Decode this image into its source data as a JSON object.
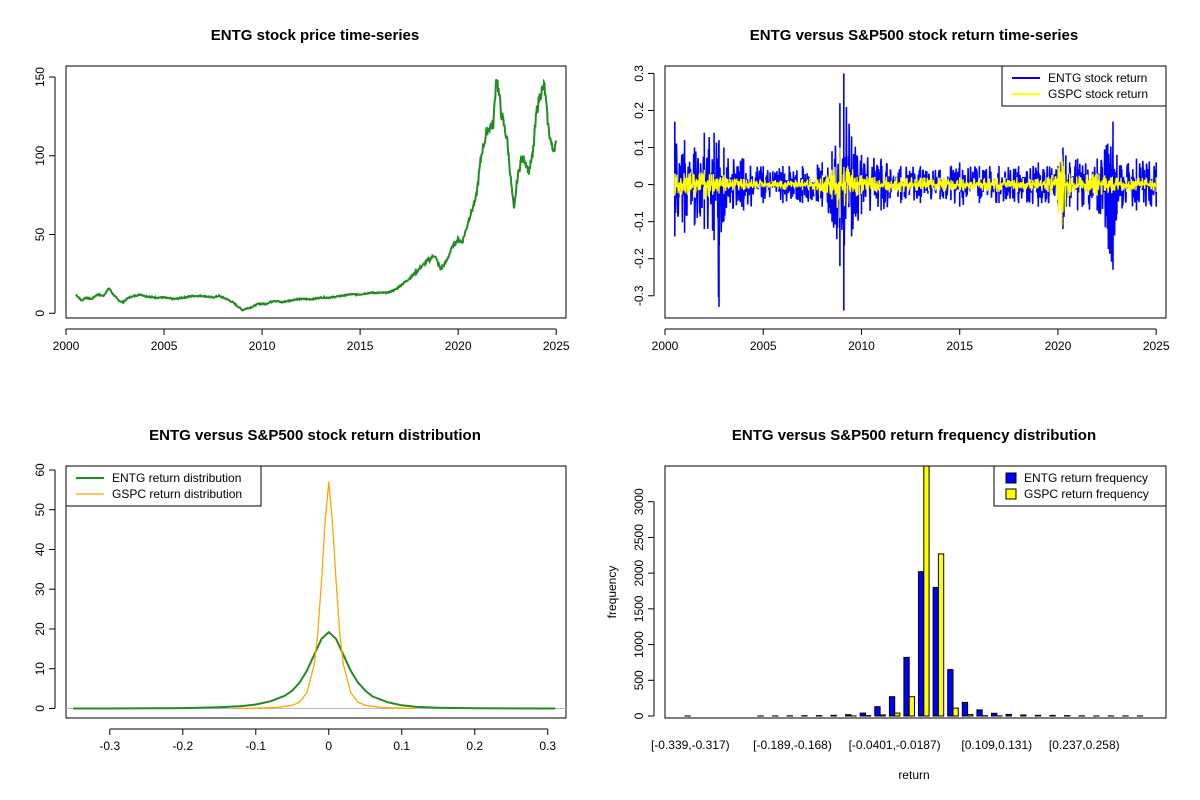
{
  "chart_data": [
    {
      "type": "line",
      "title": "ENTG stock price time-series",
      "xlabel": "",
      "ylabel": "",
      "xlim": [
        2000,
        2025.5
      ],
      "ylim": [
        -3,
        157
      ],
      "x_ticks": [
        2000,
        2005,
        2010,
        2015,
        2020,
        2025
      ],
      "y_ticks": [
        0,
        50,
        100,
        150
      ],
      "color": "#228B22",
      "series": [
        {
          "x": [
            2000.5,
            2000.8,
            2001.0,
            2001.3,
            2001.6,
            2001.9,
            2002.2,
            2002.4,
            2002.7,
            2002.9,
            2003.2,
            2003.5,
            2003.8,
            2004.0,
            2004.5,
            2005.0,
            2005.5,
            2006.0,
            2006.5,
            2007.0,
            2007.5,
            2007.8,
            2008.2,
            2008.5,
            2008.8,
            2009.0,
            2009.2,
            2009.5,
            2009.8,
            2010.2,
            2010.6,
            2011.0,
            2011.4,
            2011.8,
            2012.2,
            2012.6,
            2013.0,
            2013.5,
            2014.0,
            2014.5,
            2015.0,
            2015.5,
            2016.0,
            2016.4,
            2016.8,
            2017.2,
            2017.6,
            2018.0,
            2018.4,
            2018.8,
            2019.1,
            2019.4,
            2019.7,
            2020.0,
            2020.2,
            2020.4,
            2020.6,
            2020.9,
            2021.2,
            2021.5,
            2021.8,
            2021.95,
            2022.2,
            2022.5,
            2022.7,
            2022.85,
            2023.0,
            2023.2,
            2023.4,
            2023.6,
            2023.8,
            2024.0,
            2024.2,
            2024.4,
            2024.6,
            2024.8,
            2025.0
          ],
          "y": [
            12,
            8,
            10,
            9,
            12,
            11,
            16,
            12,
            8,
            7,
            10,
            11,
            12,
            11,
            10,
            10,
            9,
            10,
            11,
            11,
            10,
            11,
            9,
            7,
            4,
            2,
            3,
            4,
            6,
            6,
            8,
            7,
            8,
            9,
            9,
            9,
            10,
            10,
            11,
            12,
            12,
            13,
            13,
            13,
            15,
            19,
            23,
            28,
            33,
            37,
            28,
            33,
            42,
            47,
            45,
            53,
            62,
            72,
            102,
            117,
            120,
            152,
            127,
            110,
            83,
            65,
            84,
            97,
            98,
            90,
            100,
            128,
            140,
            144,
            118,
            104,
            107
          ]
        }
      ]
    },
    {
      "type": "line",
      "title": "ENTG versus S&P500 stock return time-series",
      "xlabel": "",
      "ylabel": "",
      "xlim": [
        2000,
        2025.5
      ],
      "ylim": [
        -0.36,
        0.32
      ],
      "x_ticks": [
        2000,
        2005,
        2010,
        2015,
        2020,
        2025
      ],
      "y_ticks": [
        -0.3,
        -0.2,
        -0.1,
        0.0,
        0.1,
        0.2,
        0.3
      ],
      "legend": {
        "placement": "top-right",
        "entries": [
          "ENTG stock return",
          "GSPC stock return"
        ]
      },
      "series": [
        {
          "name": "ENTG stock return",
          "color": "#0000FF",
          "envelope": {
            "x": [
              2000.5,
              2001.0,
              2001.5,
              2002.0,
              2002.5,
              2002.75,
              2003.0,
              2004.0,
              2005.0,
              2006.0,
              2007.0,
              2008.0,
              2008.5,
              2008.9,
              2009.1,
              2009.5,
              2010.0,
              2011.0,
              2012.0,
              2013.0,
              2014.0,
              2015.0,
              2016.0,
              2017.0,
              2018.0,
              2019.0,
              2020.0,
              2020.25,
              2020.6,
              2021.0,
              2022.0,
              2022.8,
              2023.0,
              2024.0,
              2025.0
            ],
            "upper": [
              0.17,
              0.12,
              0.1,
              0.14,
              0.14,
              0.12,
              0.1,
              0.07,
              0.05,
              0.05,
              0.05,
              0.06,
              0.09,
              0.22,
              0.3,
              0.13,
              0.08,
              0.07,
              0.05,
              0.05,
              0.04,
              0.06,
              0.05,
              0.05,
              0.05,
              0.06,
              0.05,
              0.1,
              0.06,
              0.07,
              0.07,
              0.17,
              0.08,
              0.07,
              0.06
            ],
            "lower": [
              -0.14,
              -0.13,
              -0.11,
              -0.12,
              -0.15,
              -0.33,
              -0.1,
              -0.07,
              -0.05,
              -0.05,
              -0.05,
              -0.06,
              -0.1,
              -0.22,
              -0.34,
              -0.14,
              -0.08,
              -0.07,
              -0.05,
              -0.05,
              -0.04,
              -0.06,
              -0.05,
              -0.05,
              -0.05,
              -0.06,
              -0.05,
              -0.12,
              -0.06,
              -0.07,
              -0.07,
              -0.23,
              -0.08,
              -0.07,
              -0.06
            ]
          }
        },
        {
          "name": "GSPC stock return",
          "color": "#FFFF00",
          "envelope": {
            "x": [
              2000.5,
              2002.0,
              2003.0,
              2004.0,
              2007.0,
              2008.5,
              2008.9,
              2009.3,
              2010.0,
              2012.0,
              2015.0,
              2019.5,
              2020.2,
              2020.6,
              2022.0,
              2023.5,
              2025.0
            ],
            "upper": [
              0.03,
              0.04,
              0.025,
              0.015,
              0.015,
              0.04,
              0.1,
              0.05,
              0.025,
              0.02,
              0.02,
              0.02,
              0.08,
              0.03,
              0.03,
              0.02,
              0.02
            ],
            "lower": [
              -0.03,
              -0.04,
              -0.025,
              -0.015,
              -0.015,
              -0.04,
              -0.09,
              -0.05,
              -0.025,
              -0.02,
              -0.02,
              -0.02,
              -0.11,
              -0.03,
              -0.03,
              -0.02,
              -0.02
            ]
          }
        }
      ]
    },
    {
      "type": "line",
      "title": "ENTG versus S&P500 stock return distribution",
      "xlabel": "",
      "ylabel": "",
      "xlim": [
        -0.36,
        0.325
      ],
      "ylim": [
        -2.4,
        61
      ],
      "x_ticks": [
        -0.3,
        -0.2,
        -0.1,
        0.0,
        0.1,
        0.2,
        0.3
      ],
      "y_ticks": [
        0,
        10,
        20,
        30,
        40,
        50,
        60
      ],
      "legend": {
        "placement": "top-left",
        "entries": [
          "ENTG return distribution",
          "GSPC return distribution"
        ]
      },
      "series": [
        {
          "name": "ENTG return distribution",
          "color": "#228B22",
          "x": [
            -0.35,
            -0.3,
            -0.2,
            -0.15,
            -0.12,
            -0.1,
            -0.08,
            -0.06,
            -0.05,
            -0.04,
            -0.03,
            -0.02,
            -0.01,
            0.0,
            0.01,
            0.02,
            0.03,
            0.04,
            0.05,
            0.06,
            0.08,
            0.1,
            0.12,
            0.15,
            0.2,
            0.3,
            0.31
          ],
          "y": [
            0,
            0,
            0.1,
            0.3,
            0.6,
            1.0,
            1.8,
            3.2,
            4.5,
            6.5,
            9.5,
            13.5,
            17.5,
            19.2,
            17.5,
            13.5,
            9.5,
            6.5,
            4.5,
            3.0,
            1.6,
            0.8,
            0.4,
            0.2,
            0.05,
            0,
            0
          ]
        },
        {
          "name": "GSPC return distribution",
          "color": "#FFA500",
          "x": [
            -0.13,
            -0.1,
            -0.07,
            -0.05,
            -0.04,
            -0.03,
            -0.02,
            -0.015,
            -0.01,
            -0.005,
            0.0,
            0.005,
            0.01,
            0.015,
            0.02,
            0.03,
            0.04,
            0.05,
            0.07,
            0.1,
            0.12
          ],
          "y": [
            0,
            0.1,
            0.3,
            0.8,
            1.6,
            4.0,
            11.0,
            19.0,
            32.0,
            47.0,
            57.0,
            47.0,
            32.0,
            19.0,
            11.0,
            4.0,
            1.6,
            0.8,
            0.3,
            0.1,
            0
          ]
        }
      ]
    },
    {
      "type": "bar",
      "title": "ENTG versus S&P500 return frequency distribution",
      "xlabel": "return",
      "ylabel": "frequency",
      "ylim": [
        0,
        3500
      ],
      "y_ticks": [
        0,
        500,
        1000,
        1500,
        2000,
        2500,
        3000
      ],
      "x_tick_labels": [
        "[-0.339,-0.317)",
        "[-0.189,-0.168)",
        "[-0.0401,-0.0187)",
        "[0.109,0.131)",
        "[0.237,0.258)"
      ],
      "x_tick_label_indices": [
        0,
        7,
        14,
        21,
        27
      ],
      "legend": {
        "placement": "top-right",
        "entries": [
          "ENTG return frequency",
          "GSPC return frequency"
        ]
      },
      "series": [
        {
          "name": "ENTG return frequency",
          "color": "#0000FF",
          "values": [
            1,
            0,
            0,
            0,
            0,
            1,
            2,
            3,
            4,
            5,
            10,
            18,
            40,
            130,
            270,
            820,
            2020,
            1800,
            650,
            190,
            85,
            38,
            22,
            14,
            10,
            8,
            6,
            3,
            2,
            1,
            1,
            1
          ]
        },
        {
          "name": "GSPC return frequency",
          "color": "#FFFF00",
          "values": [
            0,
            0,
            0,
            0,
            0,
            0,
            0,
            0,
            0,
            0,
            0,
            2,
            5,
            15,
            40,
            270,
            3500,
            2270,
            110,
            20,
            4,
            1,
            0,
            0,
            0,
            0,
            0,
            0,
            0,
            0,
            0,
            0
          ]
        }
      ]
    }
  ]
}
